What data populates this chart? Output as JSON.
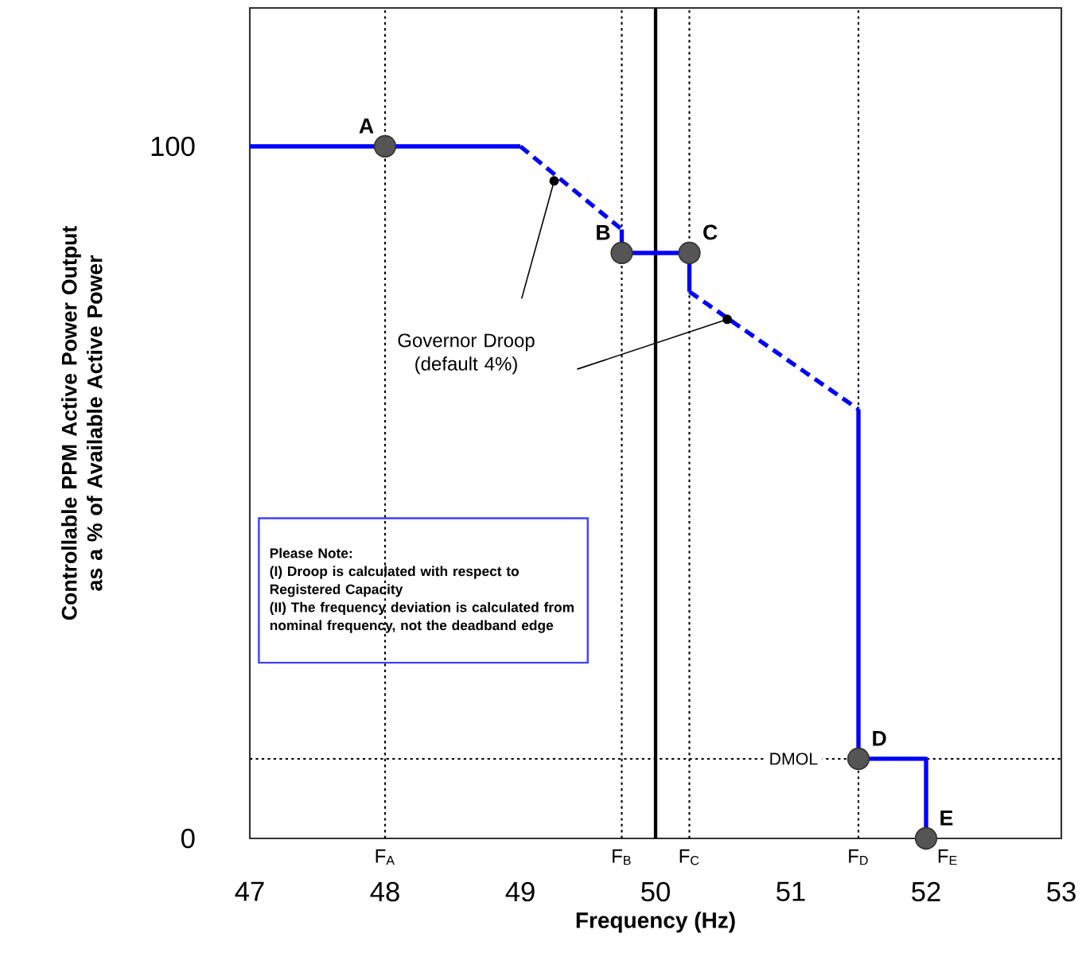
{
  "chart_data": {
    "type": "line",
    "xlabel": "Frequency (Hz)",
    "ylabel": "Controllable PPM Active Power Output as a % of Available Active Power",
    "xlim": [
      47,
      53
    ],
    "ylim": [
      0,
      120
    ],
    "xticks": [
      47,
      48,
      49,
      50,
      51,
      52,
      53
    ],
    "yticks": [
      0,
      100
    ],
    "series": [
      {
        "color": "#0000ff",
        "line_style": "solid",
        "x": [
          47,
          49
        ],
        "values": [
          100,
          100
        ]
      },
      {
        "color": "#0000ff",
        "line_style": "dashed",
        "x": [
          49,
          49.75
        ],
        "values": [
          100,
          88
        ]
      },
      {
        "color": "#0000ff",
        "line_style": "solid",
        "x": [
          49.75,
          49.75,
          50.25,
          50.25
        ],
        "values": [
          88,
          84.6,
          84.6,
          79
        ]
      },
      {
        "color": "#0000ff",
        "line_style": "dashed",
        "x": [
          50.25,
          51.5
        ],
        "values": [
          79,
          62
        ]
      },
      {
        "color": "#0000ff",
        "line_style": "solid",
        "x": [
          51.5,
          51.5,
          52,
          52
        ],
        "values": [
          62,
          11.5,
          11.5,
          0
        ]
      },
      {
        "type": "scatter",
        "color": "#555555",
        "marker": "circle",
        "x": [
          48,
          49.75,
          50.25,
          51.5,
          52
        ],
        "values": [
          100,
          84.6,
          84.6,
          11.5,
          0
        ]
      }
    ],
    "ref_lines": [
      {
        "axis": "x",
        "value": 48,
        "label": "F$_{A}$",
        "color": "#000000",
        "line_style": "dotted"
      },
      {
        "axis": "x",
        "value": 49.75,
        "label": "F$_{B}$",
        "color": "#000000",
        "line_style": "dotted"
      },
      {
        "axis": "x",
        "value": 50,
        "color": "#000000",
        "line_style": "solid"
      },
      {
        "axis": "x",
        "value": 50.25,
        "label": "F$_{C}$",
        "color": "#000000",
        "line_style": "dotted"
      },
      {
        "axis": "x",
        "value": 51.5,
        "label": "F$_{D}$",
        "color": "#000000",
        "line_style": "dotted"
      },
      {
        "axis": "y",
        "value": 11.5,
        "label": "DMOL",
        "color": "#000000",
        "line_style": "dotted"
      }
    ],
    "annotations": [
      "Governor Droop (default 4%)",
      "Please Note:",
      "(I) Droop is calculated with respect to Registered Capacity",
      "(II) The frequency deviation is calculated from nominal frequency, not the deadband edge",
      {
        "text": "A",
        "x": 48,
        "y": 100
      },
      {
        "text": "B",
        "x": 49.75,
        "y": 84.6
      },
      {
        "text": "C",
        "x": 50.25,
        "y": 84.6
      },
      {
        "text": "D",
        "x": 51.5,
        "y": 11.5
      },
      {
        "text": "E",
        "x": 52,
        "y": 0
      },
      {
        "text": "F$_{E}$",
        "x": 52,
        "y": 0
      }
    ]
  }
}
